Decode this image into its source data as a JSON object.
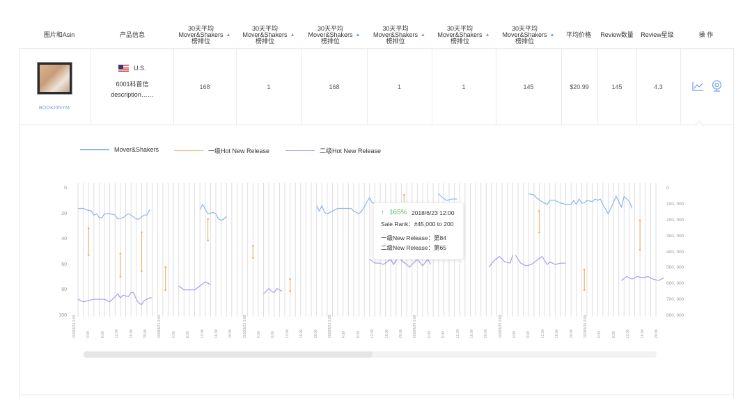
{
  "table": {
    "headers": {
      "image_asin": "图片和Asin",
      "product_info": "产品信息",
      "rank_cols": [
        [
          "30天平均",
          "Mover&Shakers",
          "榜排位"
        ],
        [
          "30天平均",
          "Mover&Shakers",
          "榜排位"
        ],
        [
          "30天平均",
          "Mover&Shakers",
          "榜排位"
        ],
        [
          "30天平均",
          "Mover&Shakers",
          "榜排位"
        ],
        [
          "30天平均",
          "Mover&Shakers",
          "榜排位"
        ],
        [
          "30天平均",
          "Mover&Shakers",
          "榜排位"
        ]
      ],
      "avg_price": "平均价格",
      "review_count": "Review数量",
      "review_rating": "Review星级",
      "actions": "操 作"
    },
    "row": {
      "asin": "BOOKI0NYM",
      "country": "U.S.",
      "product_line1": "6001科普信",
      "product_line2": "description……",
      "ranks": [
        "168",
        "1",
        "168",
        "1",
        "1",
        "145"
      ],
      "avg_price": "$20.99",
      "review_count": "145",
      "review_rating": "4.3",
      "icons": [
        "line-chart-icon",
        "webcam-icon"
      ]
    }
  },
  "chart_data": {
    "type": "line",
    "legend": [
      "Mover&Shakers",
      "一级Hot New Release",
      "二级Hot New Release"
    ],
    "colors": {
      "Mover&Shakers": "#8fb4ee",
      "一级Hot New Release": "#f2b27a",
      "二级Hot New Release": "#a99cf0"
    },
    "legend_placement": "top-left",
    "y_left": {
      "range": [
        0,
        100
      ],
      "ticks": [
        "0",
        "20",
        "40",
        "60",
        "80",
        "100"
      ],
      "inverted": true
    },
    "y_right": {
      "ticks": [
        "0",
        "100, 000",
        "200, 000",
        "300, 000",
        "400, 000",
        "500, 000",
        "600, 000",
        "700, 000",
        "800, 000"
      ]
    },
    "x_ticks": [
      "2018/6/20 0:00",
      "4:00",
      "8:00",
      "12:00",
      "16:00",
      "20:00",
      "2018/6/21 0:00",
      "4:00",
      "8:00",
      "12:00",
      "16:00",
      "20:00",
      "2018/6/22 0:00",
      "4:00",
      "8:00",
      "12:00",
      "16:00",
      "20:00",
      "2018/6/23 0:00",
      "4:00",
      "8:00",
      "12:00",
      "16:00",
      "20:00",
      "2018/6/24 0:00",
      "4:00",
      "8:00",
      "12:00",
      "16:00",
      "20:00",
      "2018/6/25 0:00",
      "4:00",
      "8:00",
      "12:00",
      "16:00",
      "20:00",
      "2018/6/26 0:00",
      "4:00",
      "8:00",
      "12:00",
      "16:00",
      "20:00"
    ],
    "series": [
      {
        "name": "Mover&Shakers",
        "segments": [
          [
            [
              0,
              19
            ],
            [
              2,
              19
            ],
            [
              3,
              20
            ],
            [
              5,
              21
            ],
            [
              6,
              24
            ],
            [
              7,
              23
            ],
            [
              8,
              26
            ],
            [
              9,
              26
            ],
            [
              10,
              23
            ],
            [
              12,
              23
            ],
            [
              14,
              24
            ],
            [
              15,
              27
            ],
            [
              17,
              26
            ],
            [
              19,
              23
            ],
            [
              20,
              24
            ],
            [
              22,
              27
            ],
            [
              23,
              27
            ],
            [
              25,
              24
            ],
            [
              26,
              24
            ],
            [
              27,
              20
            ]
          ],
          [
            [
              46,
              20
            ],
            [
              47,
              16
            ],
            [
              49,
              23
            ],
            [
              51,
              22
            ],
            [
              52,
              23
            ],
            [
              53,
              27
            ],
            [
              54,
              28
            ],
            [
              55,
              27
            ],
            [
              56,
              25
            ]
          ],
          [
            [
              90,
              17
            ],
            [
              91,
              21
            ],
            [
              92,
              17
            ],
            [
              93,
              22
            ],
            [
              94,
              23
            ],
            [
              96,
              21
            ],
            [
              98,
              19
            ],
            [
              100,
              19
            ],
            [
              103,
              19
            ],
            [
              104,
              21
            ],
            [
              106,
              23
            ],
            [
              107,
              21
            ],
            [
              108,
              18
            ],
            [
              109,
              14
            ],
            [
              110,
              11
            ],
            [
              111,
              15
            ],
            [
              112,
              15
            ]
          ],
          [
            [
              136,
              8
            ],
            [
              137,
              10
            ],
            [
              139,
              13
            ],
            [
              141,
              12
            ],
            [
              143,
              12
            ]
          ],
          [
            [
              170,
              8
            ],
            [
              172,
              9
            ],
            [
              173,
              11
            ],
            [
              175,
              14
            ],
            [
              176,
              15
            ],
            [
              177,
              16
            ],
            [
              178,
              13
            ],
            [
              180,
              13
            ],
            [
              182,
              15
            ],
            [
              184,
              16
            ],
            [
              186,
              16
            ],
            [
              187,
              13
            ],
            [
              188,
              16
            ],
            [
              189,
              12
            ],
            [
              190,
              15
            ],
            [
              191,
              15
            ],
            [
              192,
              13
            ],
            [
              194,
              14
            ],
            [
              195,
              12
            ],
            [
              196,
              13
            ],
            [
              197,
              12
            ],
            [
              198,
              16
            ],
            [
              200,
              23
            ],
            [
              201,
              19
            ],
            [
              203,
              10
            ],
            [
              205,
              18
            ],
            [
              206,
              10
            ],
            [
              208,
              14
            ],
            [
              209,
              19
            ]
          ]
        ]
      },
      {
        "name": "一级Hot New Release",
        "segments": [
          [
            [
              4,
              34
            ],
            [
              4,
              54
            ]
          ],
          [
            [
              16,
              53
            ],
            [
              16,
              70
            ]
          ],
          [
            [
              24,
              37
            ],
            [
              24,
              66
            ]
          ],
          [
            [
              33,
              63
            ],
            [
              33,
              80
            ]
          ],
          [
            [
              49,
              27
            ],
            [
              49,
              43
            ]
          ],
          [
            [
              66,
              47
            ],
            [
              66,
              56
            ]
          ],
          [
            [
              80,
              72
            ],
            [
              80,
              81
            ]
          ],
          [
            [
              123,
              9
            ],
            [
              123,
              20
            ]
          ],
          [
            [
              174,
              21
            ],
            [
              174,
              37
            ]
          ],
          [
            [
              191,
              65
            ],
            [
              191,
              80
            ]
          ],
          [
            [
              212,
              28
            ],
            [
              212,
              50
            ]
          ]
        ]
      },
      {
        "name": "二级Hot New Release",
        "segments": [
          [
            [
              0,
              87
            ],
            [
              2,
              89
            ],
            [
              4,
              88
            ],
            [
              6,
              87
            ],
            [
              8,
              87
            ],
            [
              10,
              87
            ],
            [
              12,
              89
            ],
            [
              14,
              85
            ],
            [
              15,
              83
            ],
            [
              16,
              86
            ],
            [
              17,
              84
            ],
            [
              19,
              85
            ],
            [
              20,
              82
            ],
            [
              21,
              82
            ],
            [
              22,
              87
            ],
            [
              23,
              90
            ],
            [
              24,
              91
            ],
            [
              25,
              88
            ],
            [
              27,
              86
            ],
            [
              28,
              86
            ]
          ],
          [
            [
              38,
              77
            ],
            [
              40,
              80
            ],
            [
              42,
              80
            ],
            [
              44,
              80
            ],
            [
              46,
              77
            ],
            [
              48,
              74
            ],
            [
              50,
              76
            ]
          ],
          [
            [
              70,
              83
            ],
            [
              72,
              79
            ],
            [
              73,
              81
            ],
            [
              74,
              82
            ],
            [
              75,
              79
            ],
            [
              77,
              81
            ]
          ],
          [
            [
              110,
              57
            ],
            [
              112,
              60
            ],
            [
              114,
              60
            ],
            [
              115,
              61
            ],
            [
              116,
              60
            ],
            [
              118,
              57
            ],
            [
              119,
              61
            ],
            [
              121,
              55
            ],
            [
              122,
              58
            ],
            [
              124,
              61
            ],
            [
              125,
              63
            ],
            [
              127,
              59
            ],
            [
              128,
              57
            ],
            [
              130,
              62
            ],
            [
              132,
              57
            ],
            [
              133,
              61
            ]
          ],
          [
            [
              155,
              63
            ],
            [
              157,
              58
            ],
            [
              159,
              55
            ],
            [
              161,
              59
            ],
            [
              163,
              60
            ],
            [
              164,
              54
            ]
          ],
          [
            [
              165,
              54
            ],
            [
              167,
              60
            ],
            [
              169,
              62
            ],
            [
              171,
              61
            ],
            [
              173,
              58
            ],
            [
              175,
              55
            ],
            [
              177,
              61
            ],
            [
              178,
              59
            ],
            [
              180,
              61
            ],
            [
              182,
              60
            ],
            [
              184,
              60
            ]
          ],
          [
            [
              205,
              73
            ],
            [
              207,
              70
            ],
            [
              209,
              72
            ],
            [
              211,
              70
            ],
            [
              213,
              71
            ],
            [
              215,
              70
            ],
            [
              217,
              72
            ],
            [
              219,
              73
            ],
            [
              221,
              71
            ]
          ]
        ]
      }
    ],
    "tooltip": {
      "change": "165%",
      "time": "2018/6/23 12:00",
      "sale_rank": "Sale Rank：#45,000 to 200",
      "hot1": "一级New Release：第84",
      "hot2": "二级New Release：第65"
    }
  }
}
